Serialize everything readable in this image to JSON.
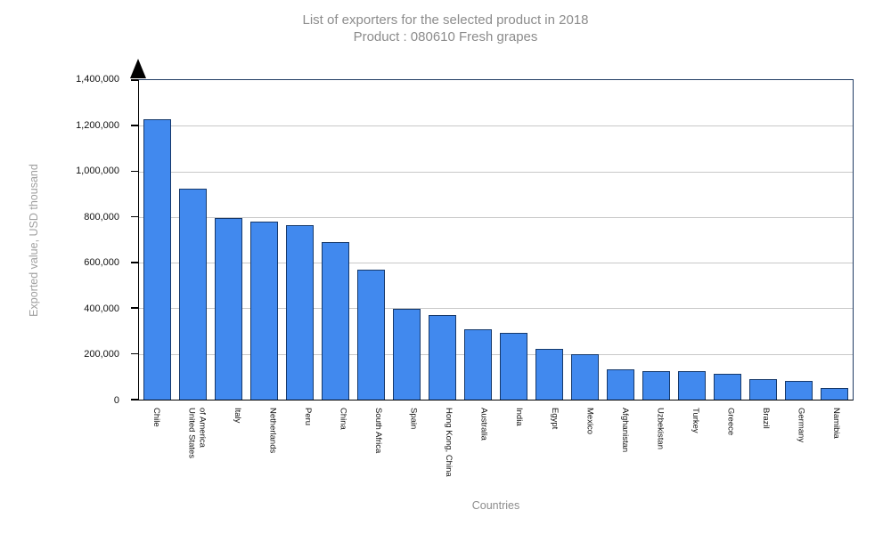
{
  "title": {
    "line1": "List of exporters for the selected product in 2018",
    "line2": "Product : 080610 Fresh grapes"
  },
  "colors": {
    "bar_fill": "#4189EE",
    "bar_border": "#16396B",
    "plot_border": "#203C64",
    "grid_line": "#C8C8C8",
    "axis_line": "#000000",
    "title_text": "#8C8C8C",
    "axis_title_text": "#A0A0A0",
    "tick_text": "#111111"
  },
  "chart_data": {
    "type": "bar",
    "title": "List of exporters for the selected product in 2018",
    "subtitle": "Product : 080610 Fresh grapes",
    "xlabel": "Countries",
    "ylabel": "Exported value, USD thousand",
    "ylim": [
      0,
      1400000
    ],
    "ytick_step": 200000,
    "grid": true,
    "legend_position": "none",
    "categories": [
      "Chile",
      "United States\nof America",
      "Italy",
      "Netherlands",
      "Peru",
      "China",
      "South Africa",
      "Spain",
      "Hong Kong, China",
      "Australia",
      "India",
      "Egypt",
      "Mexico",
      "Afghanistan",
      "Uzbekistan",
      "Turkey",
      "Greece",
      "Brazil",
      "Germany",
      "Namibia"
    ],
    "values": [
      1230000,
      925000,
      795000,
      780000,
      765000,
      690000,
      570000,
      398000,
      371000,
      310000,
      291000,
      224000,
      200000,
      131000,
      124000,
      123000,
      112000,
      88000,
      81000,
      51000
    ]
  }
}
